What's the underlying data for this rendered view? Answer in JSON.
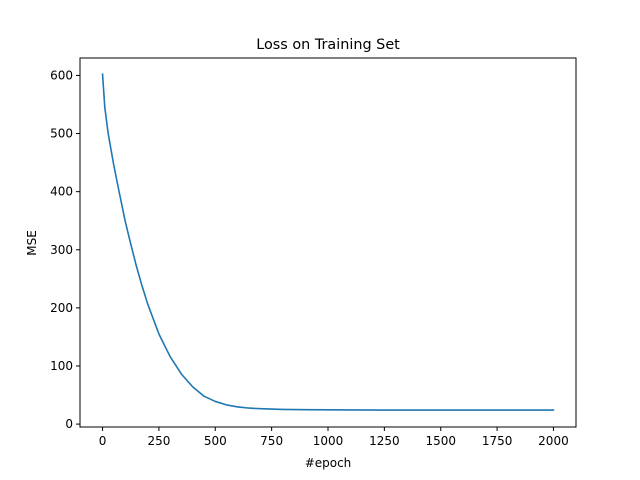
{
  "chart_data": {
    "type": "line",
    "title": "Loss on Training Set",
    "xlabel": "#epoch",
    "ylabel": "MSE",
    "xlim": [
      -100,
      2100
    ],
    "ylim": [
      -5,
      630
    ],
    "grid": false,
    "xticks": [
      0,
      250,
      500,
      750,
      1000,
      1250,
      1500,
      1750,
      2000
    ],
    "xtick_labels": [
      "0",
      "250",
      "500",
      "750",
      "1000",
      "1250",
      "1500",
      "1750",
      "2000"
    ],
    "yticks": [
      0,
      100,
      200,
      300,
      400,
      500,
      600
    ],
    "ytick_labels": [
      "0",
      "100",
      "200",
      "300",
      "400",
      "500",
      "600"
    ],
    "series": [
      {
        "name": "",
        "color": "#1f77b4",
        "x": [
          0,
          10,
          25,
          50,
          75,
          100,
          125,
          150,
          175,
          200,
          250,
          300,
          350,
          400,
          450,
          500,
          550,
          600,
          650,
          700,
          750,
          800,
          900,
          1000,
          1100,
          1250,
          1500,
          1750,
          2000
        ],
        "y": [
          602,
          545,
          500,
          445,
          397,
          350,
          310,
          272,
          238,
          207,
          155,
          116,
          86,
          64,
          48,
          39,
          33,
          29.5,
          27.5,
          26.5,
          25.8,
          25.3,
          24.8,
          24.5,
          24.3,
          24.2,
          24.1,
          24.1,
          24.1
        ]
      }
    ]
  }
}
